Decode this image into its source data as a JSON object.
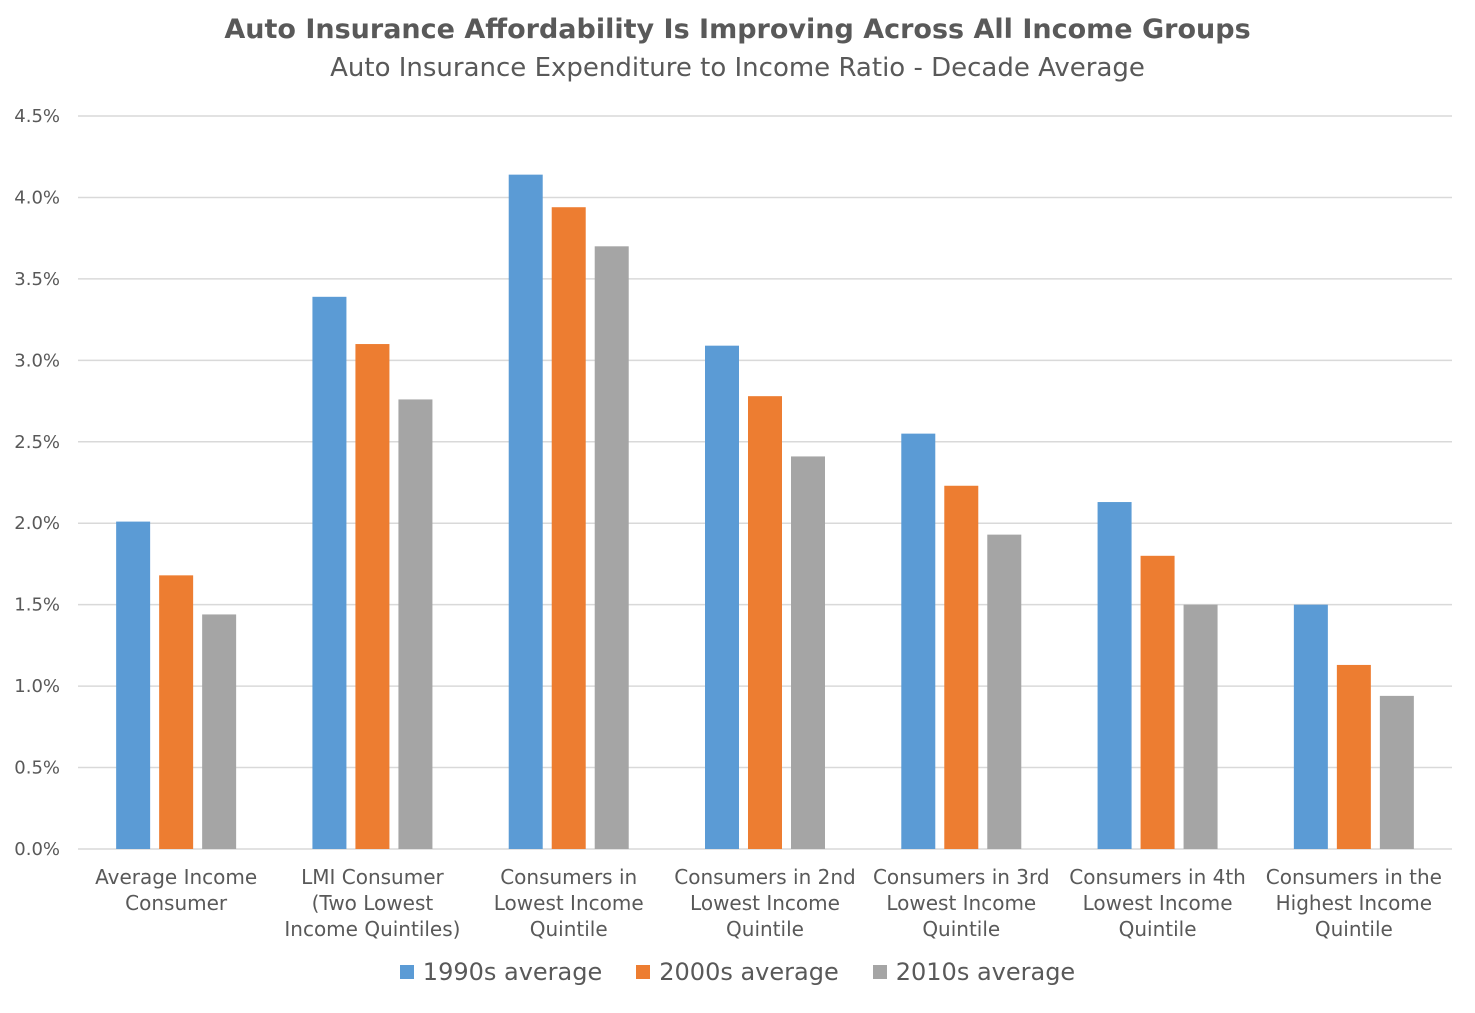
{
  "chart_data": {
    "type": "bar",
    "title": "Auto Insurance Affordability Is Improving Across All Income Groups",
    "subtitle": "Auto Insurance Expenditure to Income Ratio - Decade Average",
    "categories": [
      [
        "Average Income",
        "Consumer"
      ],
      [
        "LMI Consumer",
        "(Two Lowest",
        "Income Quintiles)"
      ],
      [
        "Consumers in",
        "Lowest Income",
        "Quintile"
      ],
      [
        "Consumers in 2nd",
        "Lowest Income",
        "Quintile"
      ],
      [
        "Consumers in 3rd",
        "Lowest Income",
        "Quintile"
      ],
      [
        "Consumers in 4th",
        "Lowest Income",
        "Quintile"
      ],
      [
        "Consumers in the",
        "Highest Income",
        "Quintile"
      ]
    ],
    "series": [
      {
        "name": "1990s average",
        "color": "#5b9bd5",
        "values": [
          2.01,
          3.39,
          4.14,
          3.09,
          2.55,
          2.13,
          1.5
        ]
      },
      {
        "name": "2000s average",
        "color": "#ed7d31",
        "values": [
          1.68,
          3.1,
          3.94,
          2.78,
          2.23,
          1.8,
          1.13
        ]
      },
      {
        "name": "2010s average",
        "color": "#a5a5a5",
        "values": [
          1.44,
          2.76,
          3.7,
          2.41,
          1.93,
          1.5,
          0.94
        ]
      }
    ],
    "y_ticks": [
      "0.0%",
      "0.5%",
      "1.0%",
      "1.5%",
      "2.0%",
      "2.5%",
      "3.0%",
      "3.5%",
      "4.0%",
      "4.5%"
    ],
    "ylim": [
      0,
      4.5
    ],
    "y_unit": "%",
    "grid": true,
    "legend_position": "bottom"
  }
}
